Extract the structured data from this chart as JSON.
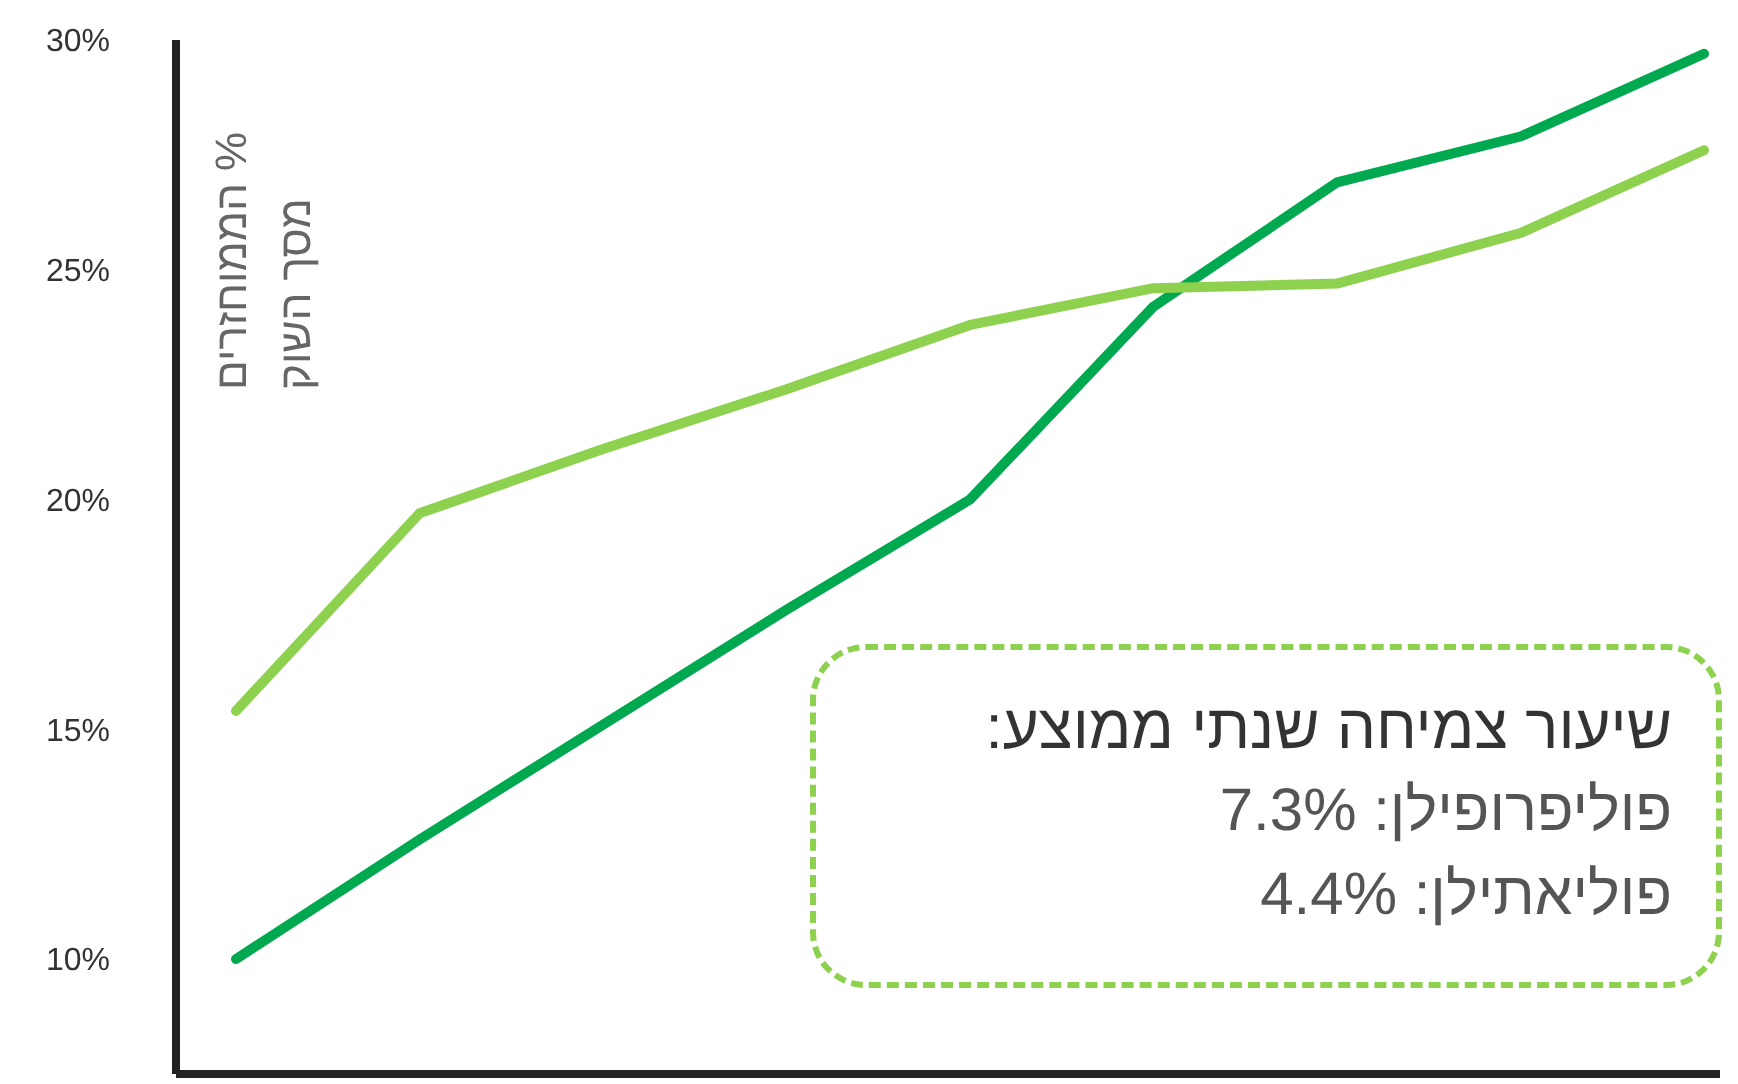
{
  "chart_data": {
    "type": "line",
    "ylabel": "% הממוחזרים\nמסך השוק",
    "categories": [
      null,
      null,
      null,
      null,
      null,
      null,
      null,
      null,
      null
    ],
    "series": [
      {
        "color": "#00a94f",
        "values": [
          10.0,
          12.6,
          15.1,
          17.6,
          20.0,
          24.2,
          26.9,
          27.9,
          29.7
        ]
      },
      {
        "color": "#8dd14f",
        "values": [
          15.4,
          19.7,
          21.1,
          22.4,
          23.8,
          24.6,
          24.7,
          25.8,
          27.6
        ]
      }
    ],
    "ylim": [
      7.5,
      30
    ],
    "yticks": [
      {
        "value": 10,
        "label": "10%"
      },
      {
        "value": 15,
        "label": "15%"
      },
      {
        "value": 20,
        "label": "20%"
      },
      {
        "value": 25,
        "label": "25%"
      },
      {
        "value": 30,
        "label": "30%"
      }
    ],
    "grid": false,
    "legend": false,
    "marker": "none",
    "line_style": "solid",
    "tick_labels": "y",
    "annotations": [
      "שיעור צמיחה שנתי ממוצע:",
      "פוליפרופילן: 7.3%",
      "פוליאתילן: 4.4%"
    ]
  }
}
